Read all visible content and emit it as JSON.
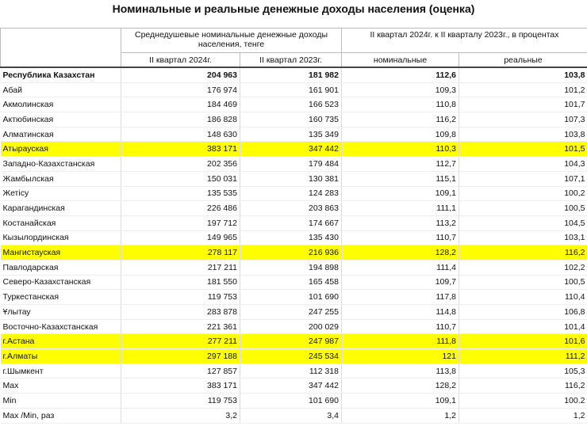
{
  "title": "Номинальные и реальные денежные доходы населения (оценка)",
  "header": {
    "groups": [
      "Среднедушевые номинальные денежные доходы населения, тенге",
      "II квартал 2024г. к II  кварталу 2023г., в процентах"
    ],
    "columns": [
      "II квартал 2024г.",
      "II  квартал 2023г.",
      "номинальные",
      "реальные"
    ]
  },
  "highlight_color": "#ffff00",
  "rows": [
    {
      "cells": [
        "Республика Казахстан",
        "204 963",
        "181 982",
        "112,6",
        "103,8"
      ],
      "bold": true
    },
    {
      "cells": [
        "Абай",
        "176 974",
        "161 901",
        "109,3",
        "101,2"
      ]
    },
    {
      "cells": [
        "Акмолинская",
        "184 469",
        "166 523",
        "110,8",
        "101,7"
      ]
    },
    {
      "cells": [
        "Актюбинская",
        "186 828",
        "160 735",
        "116,2",
        "107,3"
      ]
    },
    {
      "cells": [
        "Алматинская",
        "148 630",
        "135 349",
        "109,8",
        "103,8"
      ]
    },
    {
      "cells": [
        "Атырауская",
        "383 171",
        "347 442",
        "110,3",
        "101,5"
      ],
      "highlight": true
    },
    {
      "cells": [
        "Западно-Казахстанская",
        "202 356",
        "179 484",
        "112,7",
        "104,3"
      ]
    },
    {
      "cells": [
        "Жамбылская",
        "150 031",
        "130 381",
        "115,1",
        "107,1"
      ]
    },
    {
      "cells": [
        "Жетісу",
        "135 535",
        "124 283",
        "109,1",
        "100,2"
      ]
    },
    {
      "cells": [
        "Карагандинская",
        "226 486",
        "203 863",
        "111,1",
        "100,5"
      ]
    },
    {
      "cells": [
        "Костанайская",
        "197 712",
        "174 667",
        "113,2",
        "104,5"
      ]
    },
    {
      "cells": [
        "Кызылординская",
        "149 965",
        "135 430",
        "110,7",
        "103,1"
      ]
    },
    {
      "cells": [
        "Мангистауская",
        "278 117",
        "216 936",
        "128,2",
        "116,2"
      ],
      "highlight": true
    },
    {
      "cells": [
        "Павлодарская",
        "217 211",
        "194 898",
        "111,4",
        "102,2"
      ]
    },
    {
      "cells": [
        "Северо-Казахстанская",
        "181 550",
        "165 458",
        "109,7",
        "100,5"
      ]
    },
    {
      "cells": [
        "Туркестанская",
        "119 753",
        "101 690",
        "117,8",
        "110,4"
      ]
    },
    {
      "cells": [
        "Ұлытау",
        "283 878",
        "247 255",
        "114,8",
        "106,8"
      ]
    },
    {
      "cells": [
        "Восточно-Казахстанская",
        "221 361",
        "200 029",
        "110,7",
        "101,4"
      ]
    },
    {
      "cells": [
        "г.Астана",
        "277 211",
        "247 987",
        "111,8",
        "101,6"
      ],
      "highlight": true
    },
    {
      "cells": [
        "г.Алматы",
        "297 188",
        "245 534",
        "121",
        "111,2"
      ],
      "highlight": true
    },
    {
      "cells": [
        "г.Шымкент",
        "127 857",
        "112 318",
        "113,8",
        "105,3"
      ]
    },
    {
      "cells": [
        "Max",
        "383 171",
        "347 442",
        "128,2",
        "116,2"
      ]
    },
    {
      "cells": [
        "Min",
        "119 753",
        "101 690",
        "109,1",
        "100.2"
      ]
    },
    {
      "cells": [
        "Max /Min, раз",
        "3,2",
        "3,4",
        "1,2",
        "1,2"
      ]
    }
  ]
}
